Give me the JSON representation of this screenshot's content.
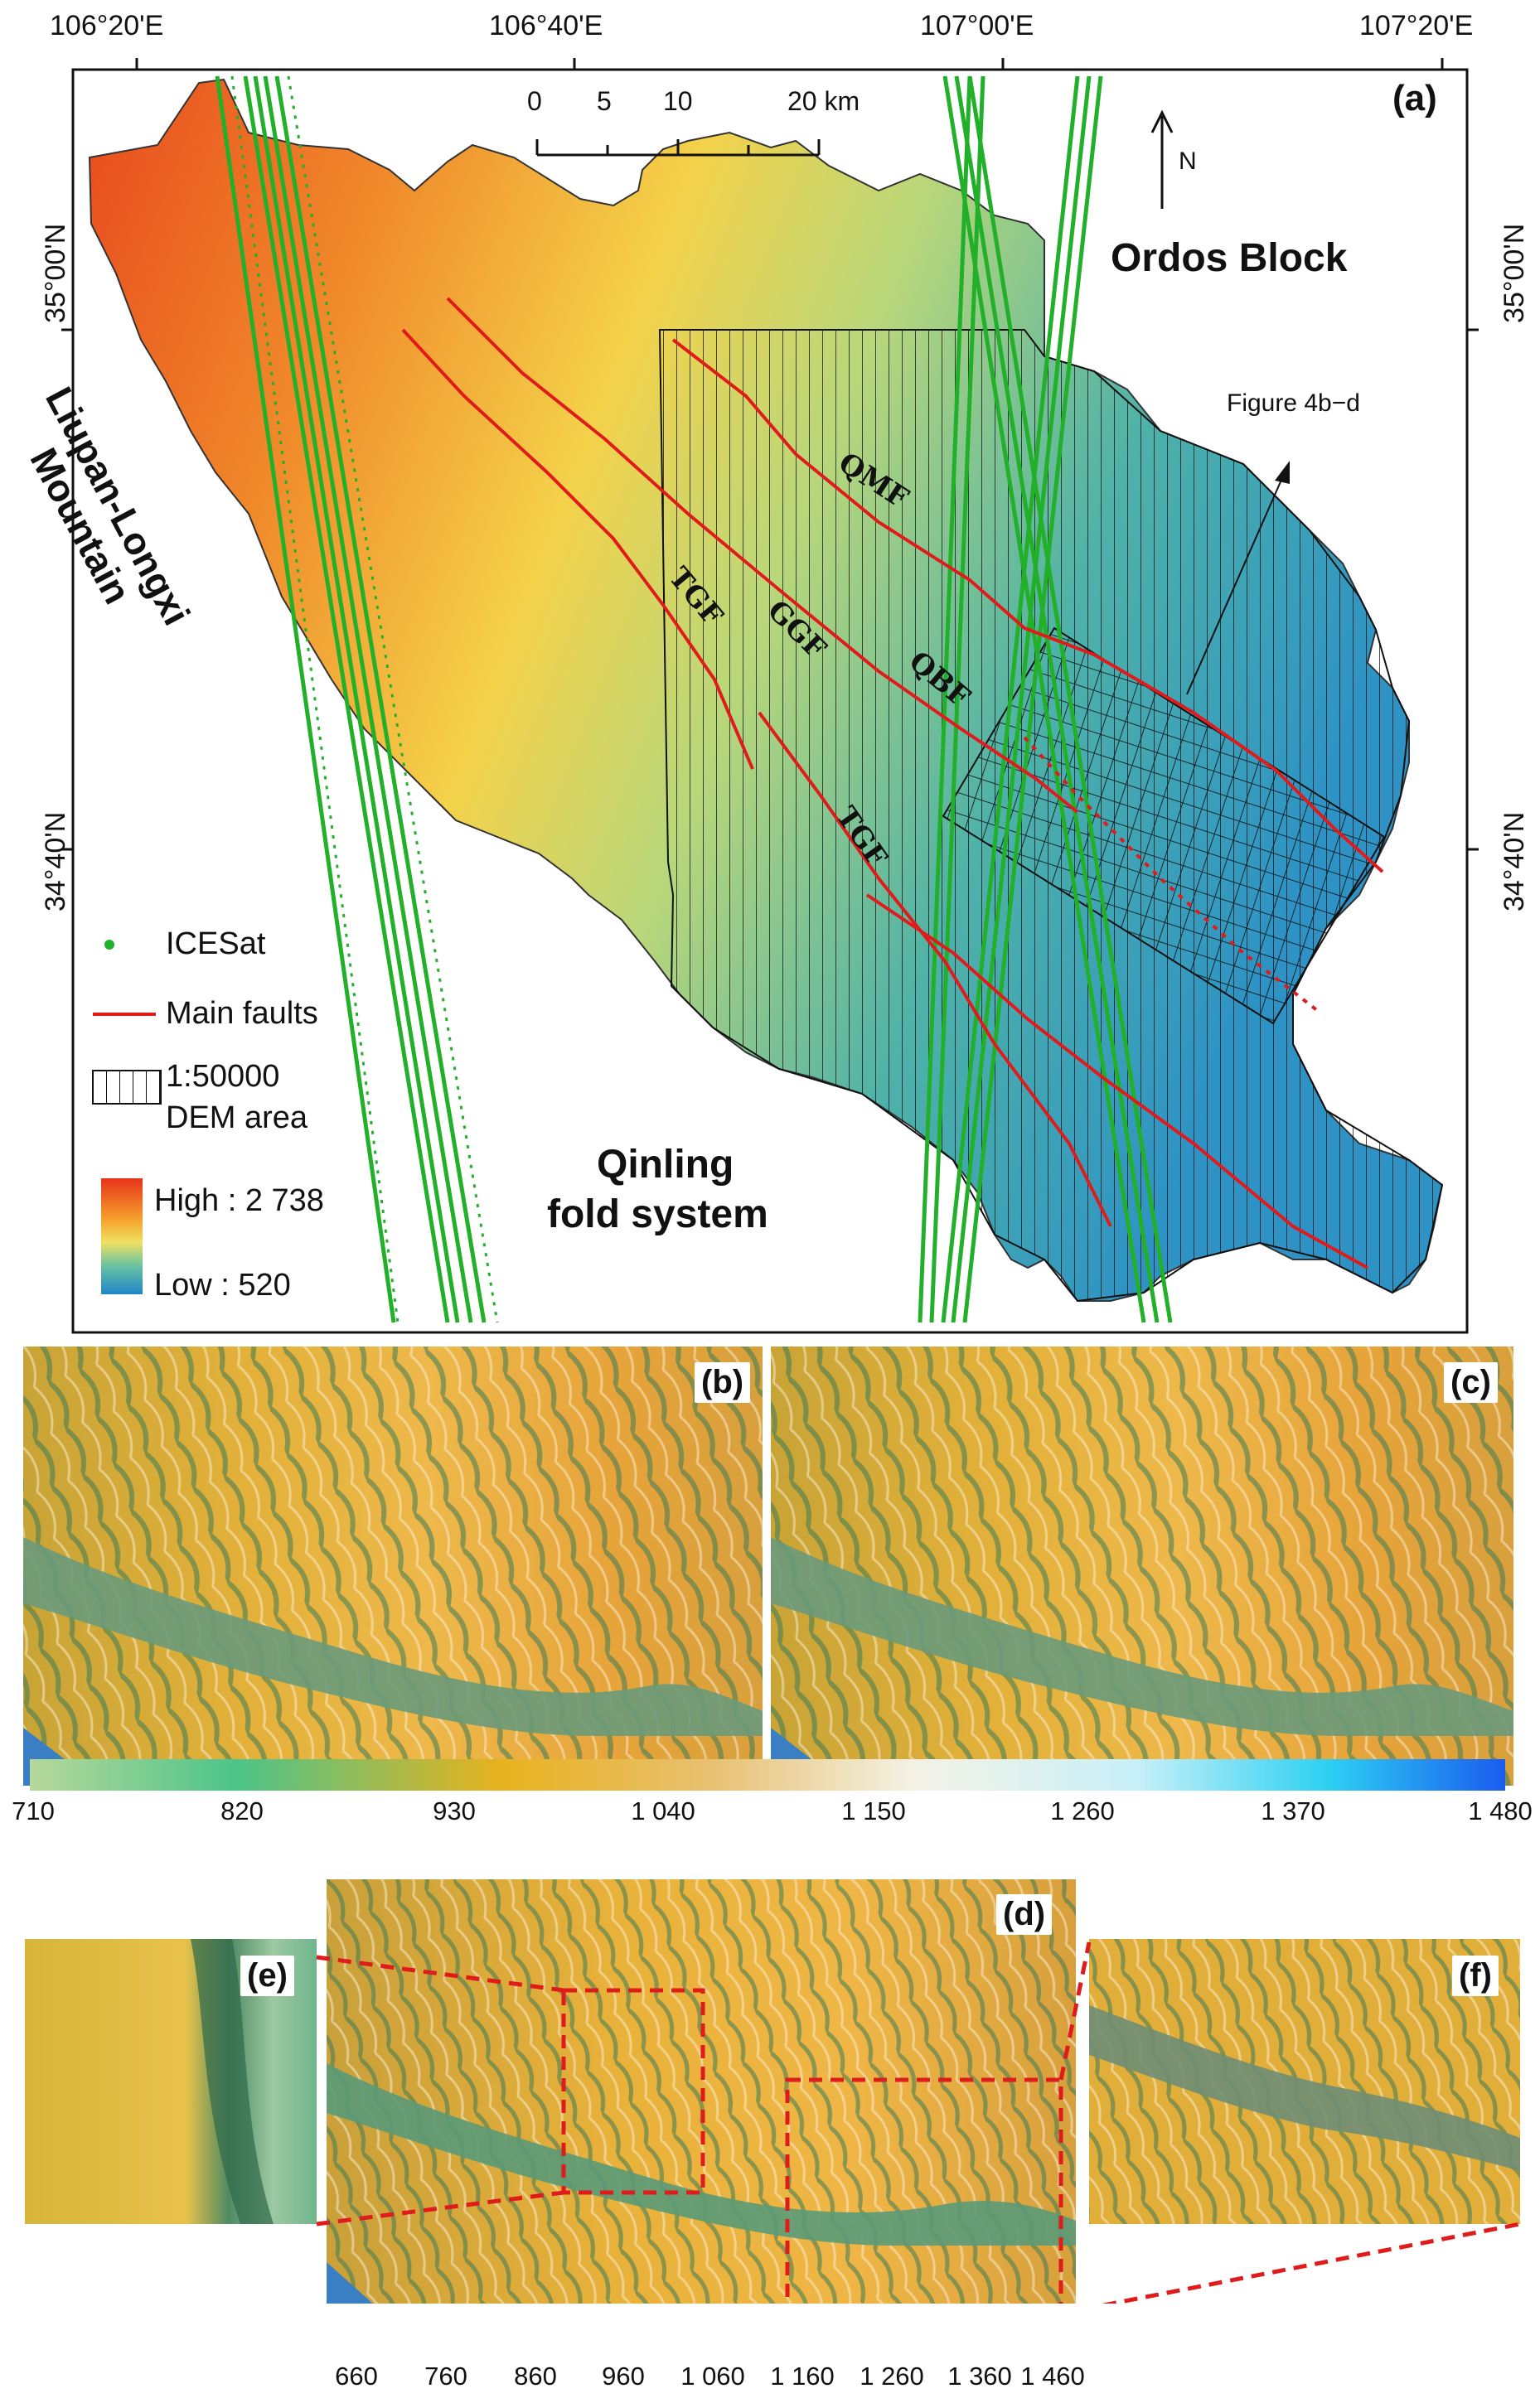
{
  "panel_a": {
    "label": "(a)",
    "top_lon_labels": [
      "106°20'E",
      "106°40'E",
      "107°00'E",
      "107°20'E"
    ],
    "left_lat_labels": [
      "35°00'N",
      "34°40'N"
    ],
    "right_lat_labels": [
      "35°00'N",
      "34°40'N"
    ],
    "scale_bar": {
      "ticks": [
        "0",
        "5",
        "10",
        "20 km"
      ]
    },
    "north_arrow": "N",
    "places": {
      "ordos": "Ordos Block",
      "liupan": "Liupan-Longxi Mountain",
      "qinling_1": "Qinling",
      "qinling_2": "fold system"
    },
    "faults": [
      "QMF",
      "TGF",
      "GGF",
      "QBF",
      "TGF"
    ],
    "figure_ref": "Figure 4b−d",
    "legend": {
      "icesat": "ICESat",
      "faults": "Main faults",
      "dem_1": "1:50000",
      "dem_2": "DEM area",
      "high": "High : 2 738",
      "low": "Low : 520"
    },
    "colors": {
      "icesat": "#22b02a",
      "fault": "#e01b1b",
      "high": "#e8401c",
      "mid": "#f2d23c",
      "low": "#2a8fc4"
    }
  },
  "panel_b": {
    "label": "(b)"
  },
  "panel_c": {
    "label": "(c)"
  },
  "colorbar_1": {
    "ticks": [
      "710",
      "820",
      "930",
      "1 040",
      "1 150",
      "1 260",
      "1 370",
      "1 480"
    ]
  },
  "panel_d": {
    "label": "(d)"
  },
  "panel_e": {
    "label": "(e)"
  },
  "panel_f": {
    "label": "(f)"
  },
  "colorbar_2": {
    "ticks": [
      "660",
      "760",
      "860",
      "960",
      "1 060",
      "1 160",
      "1 260",
      "1 360",
      "1 460"
    ]
  }
}
